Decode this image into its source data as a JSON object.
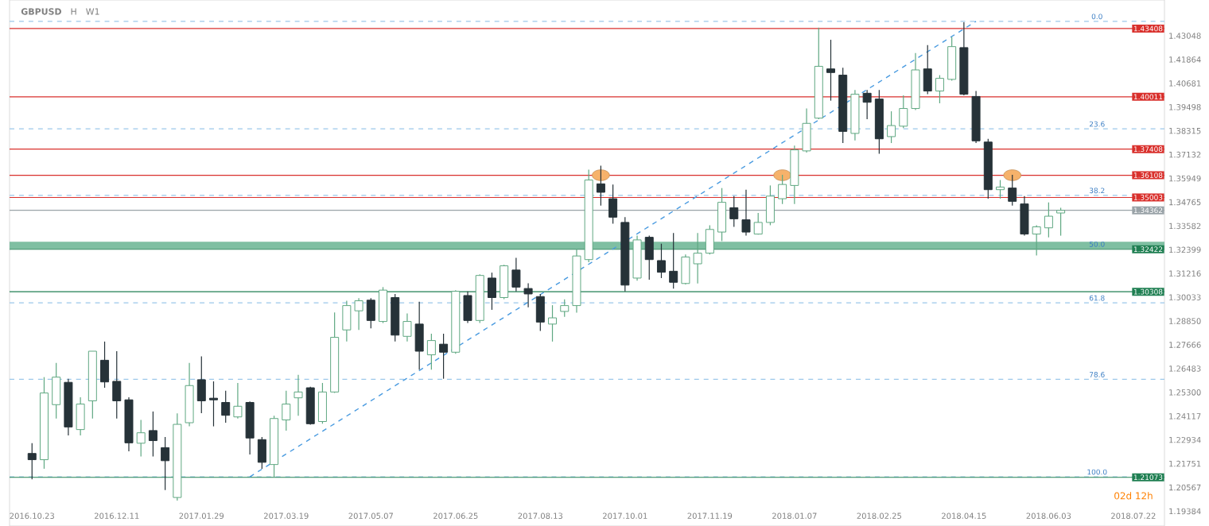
{
  "chart_data": {
    "type": "candlestick",
    "title": "GBPUSD",
    "annotations": [
      "H",
      "W1",
      "02d 12h",
      {
        "text": "0.0",
        "x": "2018-07-01",
        "y": 1.4377
      },
      {
        "text": "23.6",
        "x": "2018-07-01",
        "y": 1.3842
      },
      {
        "text": "38.2",
        "x": "2018-07-01",
        "y": 1.3511
      },
      {
        "text": "50.0",
        "x": "2018-07-01",
        "y": 1.3244
      },
      {
        "text": "61.8",
        "x": "2018-07-01",
        "y": 1.2976
      },
      {
        "text": "78.6",
        "x": "2018-07-01",
        "y": 1.2595
      },
      {
        "text": "100.0",
        "x": "2018-07-01",
        "y": 1.211
      }
    ],
    "x": [
      "2016-10-23",
      "2016-10-30",
      "2016-11-06",
      "2016-11-13",
      "2016-11-20",
      "2016-11-27",
      "2016-12-04",
      "2016-12-11",
      "2016-12-18",
      "2016-12-25",
      "2017-01-01",
      "2017-01-08",
      "2017-01-15",
      "2017-01-22",
      "2017-01-29",
      "2017-02-05",
      "2017-02-12",
      "2017-02-19",
      "2017-02-26",
      "2017-03-05",
      "2017-03-12",
      "2017-03-19",
      "2017-03-26",
      "2017-04-02",
      "2017-04-09",
      "2017-04-16",
      "2017-04-23",
      "2017-04-30",
      "2017-05-07",
      "2017-05-14",
      "2017-05-21",
      "2017-05-28",
      "2017-06-04",
      "2017-06-11",
      "2017-06-18",
      "2017-06-25",
      "2017-07-02",
      "2017-07-09",
      "2017-07-16",
      "2017-07-23",
      "2017-07-30",
      "2017-08-06",
      "2017-08-13",
      "2017-08-20",
      "2017-08-27",
      "2017-09-03",
      "2017-09-10",
      "2017-09-17",
      "2017-09-24",
      "2017-10-01",
      "2017-10-08",
      "2017-10-15",
      "2017-10-22",
      "2017-10-29",
      "2017-11-05",
      "2017-11-12",
      "2017-11-19",
      "2017-11-26",
      "2017-12-03",
      "2017-12-10",
      "2017-12-17",
      "2017-12-24",
      "2017-12-31",
      "2018-01-07",
      "2018-01-14",
      "2018-01-21",
      "2018-01-28",
      "2018-02-04",
      "2018-02-11",
      "2018-02-18",
      "2018-02-25",
      "2018-03-04",
      "2018-03-11",
      "2018-03-18",
      "2018-03-25",
      "2018-04-01",
      "2018-04-08",
      "2018-04-15",
      "2018-04-22",
      "2018-04-29",
      "2018-05-06",
      "2018-05-13",
      "2018-05-20",
      "2018-05-27",
      "2018-06-03",
      "2018-06-10"
    ],
    "ohlc": [
      [
        1.2226,
        1.2277,
        1.2097,
        1.2195
      ],
      [
        1.2195,
        1.2606,
        1.215,
        1.2527
      ],
      [
        1.2469,
        1.2677,
        1.24,
        1.2606
      ],
      [
        1.258,
        1.2598,
        1.2316,
        1.2358
      ],
      [
        1.2345,
        1.2506,
        1.2316,
        1.2472
      ],
      [
        1.2488,
        1.2735,
        1.24,
        1.2735
      ],
      [
        1.269,
        1.2783,
        1.2553,
        1.2582
      ],
      [
        1.2585,
        1.2735,
        1.24,
        1.2488
      ],
      [
        1.2493,
        1.2506,
        1.2237,
        1.2279
      ],
      [
        1.2277,
        1.2393,
        1.2211,
        1.2329
      ],
      [
        1.234,
        1.2435,
        1.2211,
        1.229
      ],
      [
        1.2255,
        1.2308,
        1.2044,
        1.219
      ],
      [
        1.2007,
        1.2426,
        1.1992,
        1.2371
      ],
      [
        1.2379,
        1.2677,
        1.2361,
        1.2564
      ],
      [
        1.2593,
        1.2709,
        1.2427,
        1.2488
      ],
      [
        1.2501,
        1.2585,
        1.2361,
        1.2493
      ],
      [
        1.248,
        1.2538,
        1.2379,
        1.2416
      ],
      [
        1.2408,
        1.2577,
        1.24,
        1.2461
      ],
      [
        1.248,
        1.2485,
        1.2221,
        1.2303
      ],
      [
        1.2295,
        1.2308,
        1.215,
        1.2182
      ],
      [
        1.2171,
        1.2414,
        1.211,
        1.24
      ],
      [
        1.2393,
        1.2538,
        1.234,
        1.2472
      ],
      [
        1.2503,
        1.2617,
        1.2414,
        1.2532
      ],
      [
        1.2553,
        1.2558,
        1.2369,
        1.2374
      ],
      [
        1.2385,
        1.2577,
        1.2374,
        1.2532
      ],
      [
        1.2532,
        1.2928,
        1.2527,
        1.2804
      ],
      [
        1.2841,
        1.2986,
        1.2783,
        1.2962
      ],
      [
        1.2936,
        1.2999,
        1.2841,
        1.2986
      ],
      [
        1.2989,
        1.2999,
        1.2849,
        1.2888
      ],
      [
        1.2883,
        1.3054,
        1.2875,
        1.3039
      ],
      [
        1.3002,
        1.302,
        1.2783,
        1.2815
      ],
      [
        1.2809,
        1.2923,
        1.2783,
        1.2883
      ],
      [
        1.287,
        1.2981,
        1.2643,
        1.2735
      ],
      [
        1.2717,
        1.2822,
        1.2643,
        1.2788
      ],
      [
        1.277,
        1.2822,
        1.2598,
        1.273
      ],
      [
        1.273,
        1.3039,
        1.2722,
        1.3033
      ],
      [
        1.3012,
        1.3033,
        1.2875,
        1.2888
      ],
      [
        1.2888,
        1.3118,
        1.2875,
        1.3112
      ],
      [
        1.3099,
        1.3126,
        1.2941,
        1.3002
      ],
      [
        1.3002,
        1.3165,
        1.2994,
        1.316
      ],
      [
        1.3139,
        1.32,
        1.3033,
        1.3054
      ],
      [
        1.3047,
        1.3073,
        1.2954,
        1.302
      ],
      [
        1.3007,
        1.302,
        1.2836,
        1.288
      ],
      [
        1.287,
        1.2964,
        1.2783,
        1.2901
      ],
      [
        1.2933,
        1.2993,
        1.2906,
        1.2962
      ],
      [
        1.2962,
        1.3244,
        1.2927,
        1.3209
      ],
      [
        1.3191,
        1.3639,
        1.3178,
        1.3587
      ],
      [
        1.3568,
        1.3658,
        1.346,
        1.3526
      ],
      [
        1.3494,
        1.3565,
        1.337,
        1.3402
      ],
      [
        1.3376,
        1.3402,
        1.3033,
        1.3064
      ],
      [
        1.3099,
        1.331,
        1.3086,
        1.3289
      ],
      [
        1.3302,
        1.331,
        1.3091,
        1.3191
      ],
      [
        1.3186,
        1.327,
        1.3099,
        1.3128
      ],
      [
        1.3133,
        1.3323,
        1.3046,
        1.3078
      ],
      [
        1.3072,
        1.3217,
        1.3067,
        1.3204
      ],
      [
        1.317,
        1.3323,
        1.3072,
        1.3223
      ],
      [
        1.3223,
        1.3362,
        1.3217,
        1.3341
      ],
      [
        1.3328,
        1.3547,
        1.3283,
        1.3476
      ],
      [
        1.3449,
        1.3507,
        1.3354,
        1.3394
      ],
      [
        1.3389,
        1.3539,
        1.331,
        1.3328
      ],
      [
        1.3318,
        1.3423,
        1.3315,
        1.3376
      ],
      [
        1.3376,
        1.356,
        1.3362,
        1.3507
      ],
      [
        1.3494,
        1.3613,
        1.3468,
        1.3565
      ],
      [
        1.356,
        1.3758,
        1.3468,
        1.3737
      ],
      [
        1.3732,
        1.3943,
        1.3724,
        1.3869
      ],
      [
        1.3895,
        1.4346,
        1.389,
        1.4153
      ],
      [
        1.414,
        1.4285,
        1.3982,
        1.4122
      ],
      [
        1.4109,
        1.4146,
        1.3771,
        1.3829
      ],
      [
        1.3819,
        1.4035,
        1.3784,
        1.4014
      ],
      [
        1.4019,
        1.4035,
        1.389,
        1.3974
      ],
      [
        1.399,
        1.4035,
        1.3718,
        1.3792
      ],
      [
        1.3803,
        1.3929,
        1.3771,
        1.3858
      ],
      [
        1.3855,
        1.4008,
        1.3845,
        1.3943
      ],
      [
        1.3943,
        1.4219,
        1.3935,
        1.4135
      ],
      [
        1.414,
        1.4259,
        1.4014,
        1.403
      ],
      [
        1.403,
        1.4109,
        1.3969,
        1.4093
      ],
      [
        1.4088,
        1.4299,
        1.4082,
        1.4251
      ],
      [
        1.4246,
        1.4372,
        1.4008,
        1.4014
      ],
      [
        1.4003,
        1.403,
        1.3771,
        1.3782
      ],
      [
        1.3776,
        1.3792,
        1.3494,
        1.3539
      ],
      [
        1.3539,
        1.3587,
        1.3494,
        1.3552
      ],
      [
        1.3547,
        1.3613,
        1.346,
        1.3481
      ],
      [
        1.3468,
        1.3507,
        1.331,
        1.3318
      ],
      [
        1.3318,
        1.3362,
        1.3212,
        1.3354
      ],
      [
        1.3349,
        1.3476,
        1.3302,
        1.3407
      ],
      [
        1.3423,
        1.3449,
        1.331,
        1.3436
      ]
    ],
    "colors": [
      "#263238",
      "#5fa882",
      "#5fa882",
      "#263238",
      "#5fa882",
      "#5fa882",
      "#263238",
      "#263238",
      "#263238",
      "#5fa882",
      "#263238",
      "#263238",
      "#5fa882",
      "#5fa882",
      "#263238",
      "#263238",
      "#263238",
      "#5fa882",
      "#263238",
      "#263238",
      "#5fa882",
      "#5fa882",
      "#5fa882",
      "#263238",
      "#5fa882",
      "#5fa882",
      "#5fa882",
      "#5fa882",
      "#263238",
      "#5fa882",
      "#263238",
      "#5fa882",
      "#263238",
      "#5fa882",
      "#263238",
      "#5fa882",
      "#263238",
      "#5fa882",
      "#263238",
      "#5fa882",
      "#263238",
      "#263238",
      "#263238",
      "#5fa882",
      "#5fa882",
      "#5fa882",
      "#5fa882",
      "#263238",
      "#263238",
      "#263238",
      "#5fa882",
      "#263238",
      "#263238",
      "#263238",
      "#5fa882",
      "#5fa882",
      "#5fa882",
      "#5fa882",
      "#263238",
      "#263238",
      "#5fa882",
      "#5fa882",
      "#5fa882",
      "#5fa882",
      "#5fa882",
      "#5fa882",
      "#263238",
      "#263238",
      "#5fa882",
      "#263238",
      "#263238",
      "#5fa882",
      "#5fa882",
      "#5fa882",
      "#263238",
      "#5fa882",
      "#5fa882",
      "#263238",
      "#263238",
      "#263238",
      "#5fa882",
      "#263238",
      "#263238",
      "#5fa882",
      "#5fa882",
      "#5fa882"
    ],
    "series": [
      {
        "type": "line",
        "x": [
          "2017-02-26",
          "2018-04-22"
        ],
        "values": [
          1.211,
          1.4377
        ],
        "color": "#4a9be0",
        "line_style": "dashed"
      },
      {
        "type": "scatter",
        "x": [
          "2017-09-17",
          "2017-12-31",
          "2018-05-13"
        ],
        "values": [
          1.3611,
          1.3611,
          1.3611
        ],
        "color": "#f6b26b",
        "marker": "circle"
      }
    ],
    "bands": [
      {
        "axis": "y",
        "from": 1.3245,
        "to": 1.328,
        "color": "#7fbfa2"
      }
    ],
    "ref_lines": [
      {
        "axis": "y",
        "value": 1.4377,
        "color": "#9cc8ea",
        "line_style": "dashed"
      },
      {
        "axis": "y",
        "value": 1.3842,
        "color": "#9cc8ea",
        "line_style": "dashed"
      },
      {
        "axis": "y",
        "value": 1.3511,
        "color": "#9cc8ea",
        "line_style": "dashed"
      },
      {
        "axis": "y",
        "value": 1.2976,
        "color": "#9cc8ea",
        "line_style": "dashed"
      },
      {
        "axis": "y",
        "value": 1.2595,
        "color": "#9cc8ea",
        "line_style": "dashed"
      },
      {
        "axis": "y",
        "value": 1.211,
        "color": "#9cc8ea",
        "line_style": "dashed"
      },
      {
        "axis": "y",
        "value": 1.43408,
        "label": "1.43408",
        "color": "#d9302c",
        "line_style": "solid"
      },
      {
        "axis": "y",
        "value": 1.40011,
        "label": "1.40011",
        "color": "#d9302c",
        "line_style": "solid"
      },
      {
        "axis": "y",
        "value": 1.37408,
        "label": "1.37408",
        "color": "#d9302c",
        "line_style": "solid"
      },
      {
        "axis": "y",
        "value": 1.36108,
        "label": "1.36108",
        "color": "#d9302c",
        "line_style": "solid"
      },
      {
        "axis": "y",
        "value": 1.35003,
        "label": "1.35003",
        "color": "#d9302c",
        "line_style": "solid"
      },
      {
        "axis": "y",
        "value": 1.34362,
        "label": "1.34362",
        "color": "#9aa3a8",
        "line_style": "solid"
      },
      {
        "axis": "y",
        "value": 1.32422,
        "label": "1.32422",
        "color": "#1f7f52",
        "line_style": "solid"
      },
      {
        "axis": "y",
        "value": 1.30308,
        "label": "1.30308",
        "color": "#1f7f52",
        "line_style": "solid"
      },
      {
        "axis": "y",
        "value": 1.21073,
        "label": "1.21073",
        "color": "#1f7f52",
        "line_style": "solid"
      }
    ],
    "xlim": [
      "2016-10-10",
      "2018-08-09"
    ],
    "xticks": [
      {
        "value": "2016-10-23",
        "label": "2016.10.23"
      },
      {
        "value": "2016-12-11",
        "label": "2016.12.11"
      },
      {
        "value": "2017-01-29",
        "label": "2017.01.29"
      },
      {
        "value": "2017-03-19",
        "label": "2017.03.19"
      },
      {
        "value": "2017-05-07",
        "label": "2017.05.07"
      },
      {
        "value": "2017-06-25",
        "label": "2017.06.25"
      },
      {
        "value": "2017-08-13",
        "label": "2017.08.13"
      },
      {
        "value": "2017-10-01",
        "label": "2017.10.01"
      },
      {
        "value": "2017-11-19",
        "label": "2017.11.19"
      },
      {
        "value": "2018-01-07",
        "label": "2018.01.07"
      },
      {
        "value": "2018-02-25",
        "label": "2018.02.25"
      },
      {
        "value": "2018-04-15",
        "label": "2018.04.15"
      },
      {
        "value": "2018-06-03",
        "label": "2018.06.03"
      },
      {
        "value": "2018-07-22",
        "label": "2018.07.22"
      }
    ],
    "ylim": [
      1.1865,
      1.4483
    ],
    "yticks": [
      1.43048,
      1.41864,
      1.40681,
      1.39498,
      1.38315,
      1.37132,
      1.35949,
      1.34765,
      1.33582,
      1.32399,
      1.31216,
      1.30033,
      {
        "value": 1.2885,
        "label": "1.28850"
      },
      1.27666,
      1.26483,
      {
        "value": 1.253,
        "label": "1.25300"
      },
      1.24117,
      1.22934,
      1.21751,
      1.20567,
      1.19384
    ]
  }
}
